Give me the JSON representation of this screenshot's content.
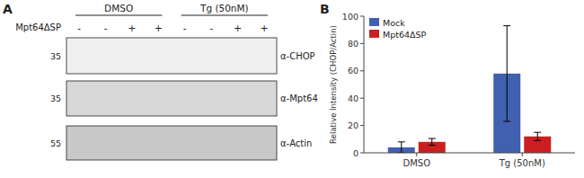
{
  "chart_data": {
    "type": "bar",
    "categories": [
      "DMSO",
      "Tg (50nM)"
    ],
    "series": [
      {
        "name": "Mock",
        "color": "#4060b0",
        "values": [
          4.0,
          58.0
        ],
        "errors": [
          4.0,
          35.0
        ]
      },
      {
        "name": "Mpt64ΔSP",
        "color": "#cc2020",
        "values": [
          8.0,
          12.0
        ],
        "errors": [
          2.5,
          3.0
        ]
      }
    ],
    "y_label": "Relative Intensity (CHOP/Actin)",
    "ylim": [
      0,
      100
    ],
    "yticks": [
      0,
      20,
      40,
      60,
      80,
      100
    ],
    "grid": false,
    "legend": "upper left",
    "annotations": [
      "A",
      "B",
      "DMSO",
      "Tg (50nM)",
      "Mpt64ΔSP",
      "-",
      "-",
      "+",
      "+",
      "-",
      "-",
      "+",
      "+",
      "35",
      "35",
      "55",
      "α-CHOP",
      "α-Mpt64",
      "α-Actin"
    ]
  }
}
